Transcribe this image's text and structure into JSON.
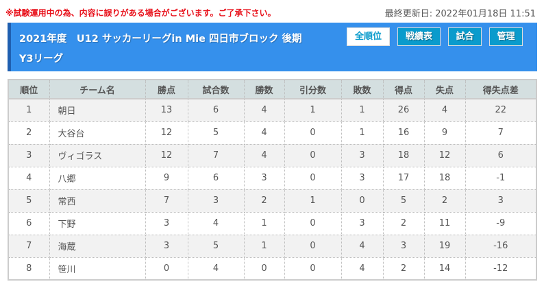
{
  "notice": "※試験運用中の為、内容に誤りがある場合がございます。ご了承下さい。",
  "updated": "最終更新日: 2022年01月18日 11:51",
  "header": {
    "title_line1": "2021年度　U12 サッカーリーグin Mie 四日市ブロック 後期",
    "title_line2": "Y3リーグ",
    "buttons": [
      {
        "label": "全順位",
        "active": true
      },
      {
        "label": "戦績表"
      },
      {
        "label": "試合"
      },
      {
        "label": "管理"
      }
    ]
  },
  "colors": {
    "header_bg": "#3590ec",
    "button_bg": "#0a9bcc",
    "notice": "#e8101a",
    "table_header_bg": "#d4dfe0"
  },
  "table": {
    "columns": [
      "順位",
      "チーム名",
      "勝点",
      "試合数",
      "勝数",
      "引分数",
      "敗数",
      "得点",
      "失点",
      "得失点差"
    ],
    "rows": [
      [
        "1",
        "朝日",
        "13",
        "6",
        "4",
        "1",
        "1",
        "26",
        "4",
        "22"
      ],
      [
        "2",
        "大谷台",
        "12",
        "5",
        "4",
        "0",
        "1",
        "16",
        "9",
        "7"
      ],
      [
        "3",
        "ヴィゴラス",
        "12",
        "7",
        "4",
        "0",
        "3",
        "18",
        "12",
        "6"
      ],
      [
        "4",
        "八郷",
        "9",
        "6",
        "3",
        "0",
        "3",
        "17",
        "18",
        "-1"
      ],
      [
        "5",
        "常西",
        "7",
        "3",
        "2",
        "1",
        "0",
        "5",
        "2",
        "3"
      ],
      [
        "6",
        "下野",
        "3",
        "4",
        "1",
        "0",
        "3",
        "2",
        "11",
        "-9"
      ],
      [
        "7",
        "海蔵",
        "3",
        "5",
        "1",
        "0",
        "4",
        "3",
        "19",
        "-16"
      ],
      [
        "8",
        "笹川",
        "0",
        "4",
        "0",
        "0",
        "4",
        "2",
        "14",
        "-12"
      ]
    ]
  }
}
